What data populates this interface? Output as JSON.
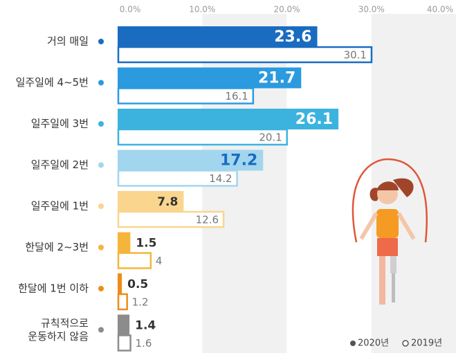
{
  "chart_data": {
    "type": "bar",
    "orientation": "horizontal",
    "categories": [
      "거의 매일",
      "일주일에 4~5번",
      "일주일에 3번",
      "일주일에 2번",
      "일주일에 1번",
      "한달에 2~3번",
      "한달에 1번 이하",
      "규칙적으로\n운동하지 않음"
    ],
    "category_colors": [
      "#1a6cc0",
      "#2b9ade",
      "#3cb3df",
      "#a2d6ee",
      "#f9d58e",
      "#f5b53a",
      "#ee8c1a",
      "#8c8c8c"
    ],
    "series": [
      {
        "name": "2020년",
        "style": "filled",
        "values": [
          23.6,
          21.7,
          26.1,
          17.2,
          7.8,
          1.5,
          0.5,
          1.4
        ],
        "value_label_colors": [
          "#ffffff",
          "#ffffff",
          "#ffffff",
          "#1a6cc0",
          "#333333",
          "#333333",
          "#333333",
          "#333333"
        ]
      },
      {
        "name": "2019년",
        "style": "outline",
        "values": [
          30.1,
          16.1,
          20.1,
          14.2,
          12.6,
          4.0,
          1.2,
          1.6
        ]
      }
    ],
    "xlim": [
      0,
      40
    ],
    "xticks": [
      {
        "value": 0,
        "label": "0.0%"
      },
      {
        "value": 10,
        "label": "10.0%"
      },
      {
        "value": 20,
        "label": "20.0%"
      },
      {
        "value": 30,
        "label": "30.0%"
      },
      {
        "value": 40,
        "label": "40.0%"
      }
    ],
    "grid": true,
    "legend": "bottom-right"
  }
}
